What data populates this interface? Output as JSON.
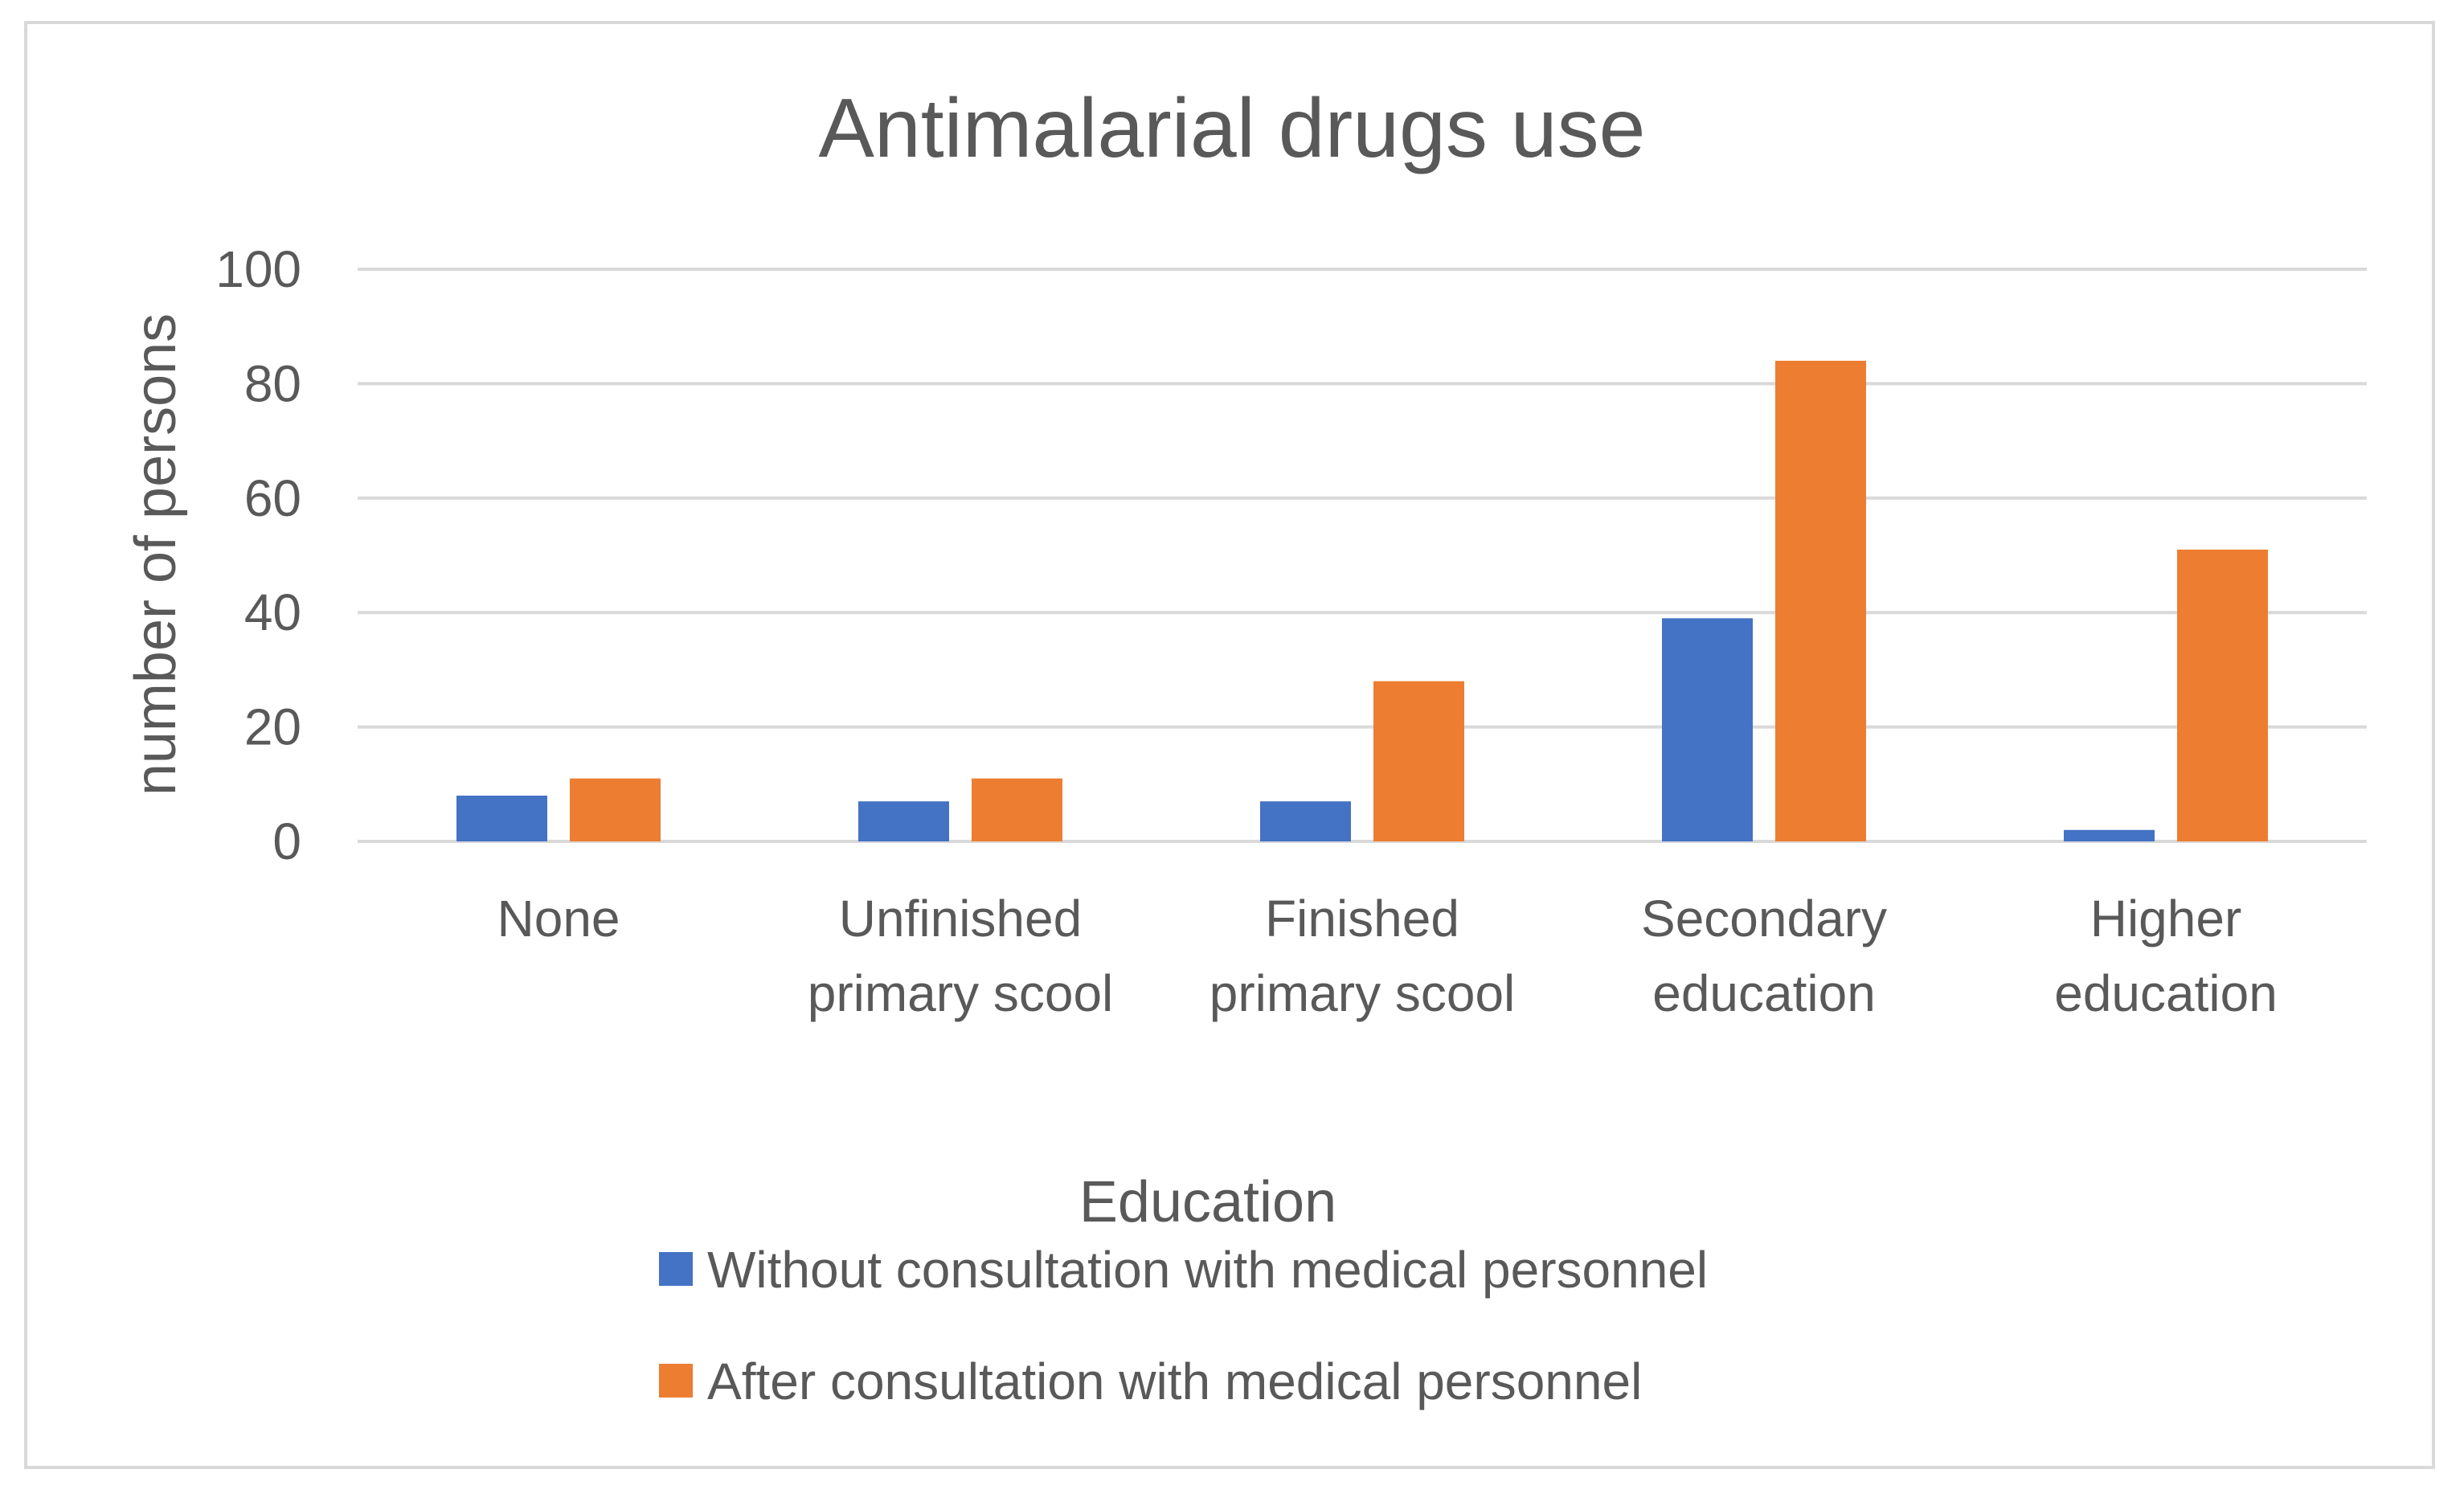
{
  "chart_data": {
    "type": "bar",
    "title": "Antimalarial drugs use",
    "xlabel": "Education",
    "ylabel": "number of persons",
    "ylim": [
      0,
      100
    ],
    "yticks": [
      0,
      20,
      40,
      60,
      80,
      100
    ],
    "grid": true,
    "legend_position": "bottom",
    "categories": [
      [
        "None"
      ],
      [
        "Unfinished",
        "primary scool"
      ],
      [
        "Finished",
        "primary scool"
      ],
      [
        "Secondary",
        "education"
      ],
      [
        "Higher",
        "education"
      ]
    ],
    "series": [
      {
        "name": "Without consultation with medical personnel",
        "color": "#4472C4",
        "values": [
          8,
          7,
          7,
          39,
          2
        ]
      },
      {
        "name": "After consultation with medical personnel",
        "color": "#ED7D31",
        "values": [
          11,
          11,
          28,
          84,
          51
        ]
      }
    ]
  }
}
